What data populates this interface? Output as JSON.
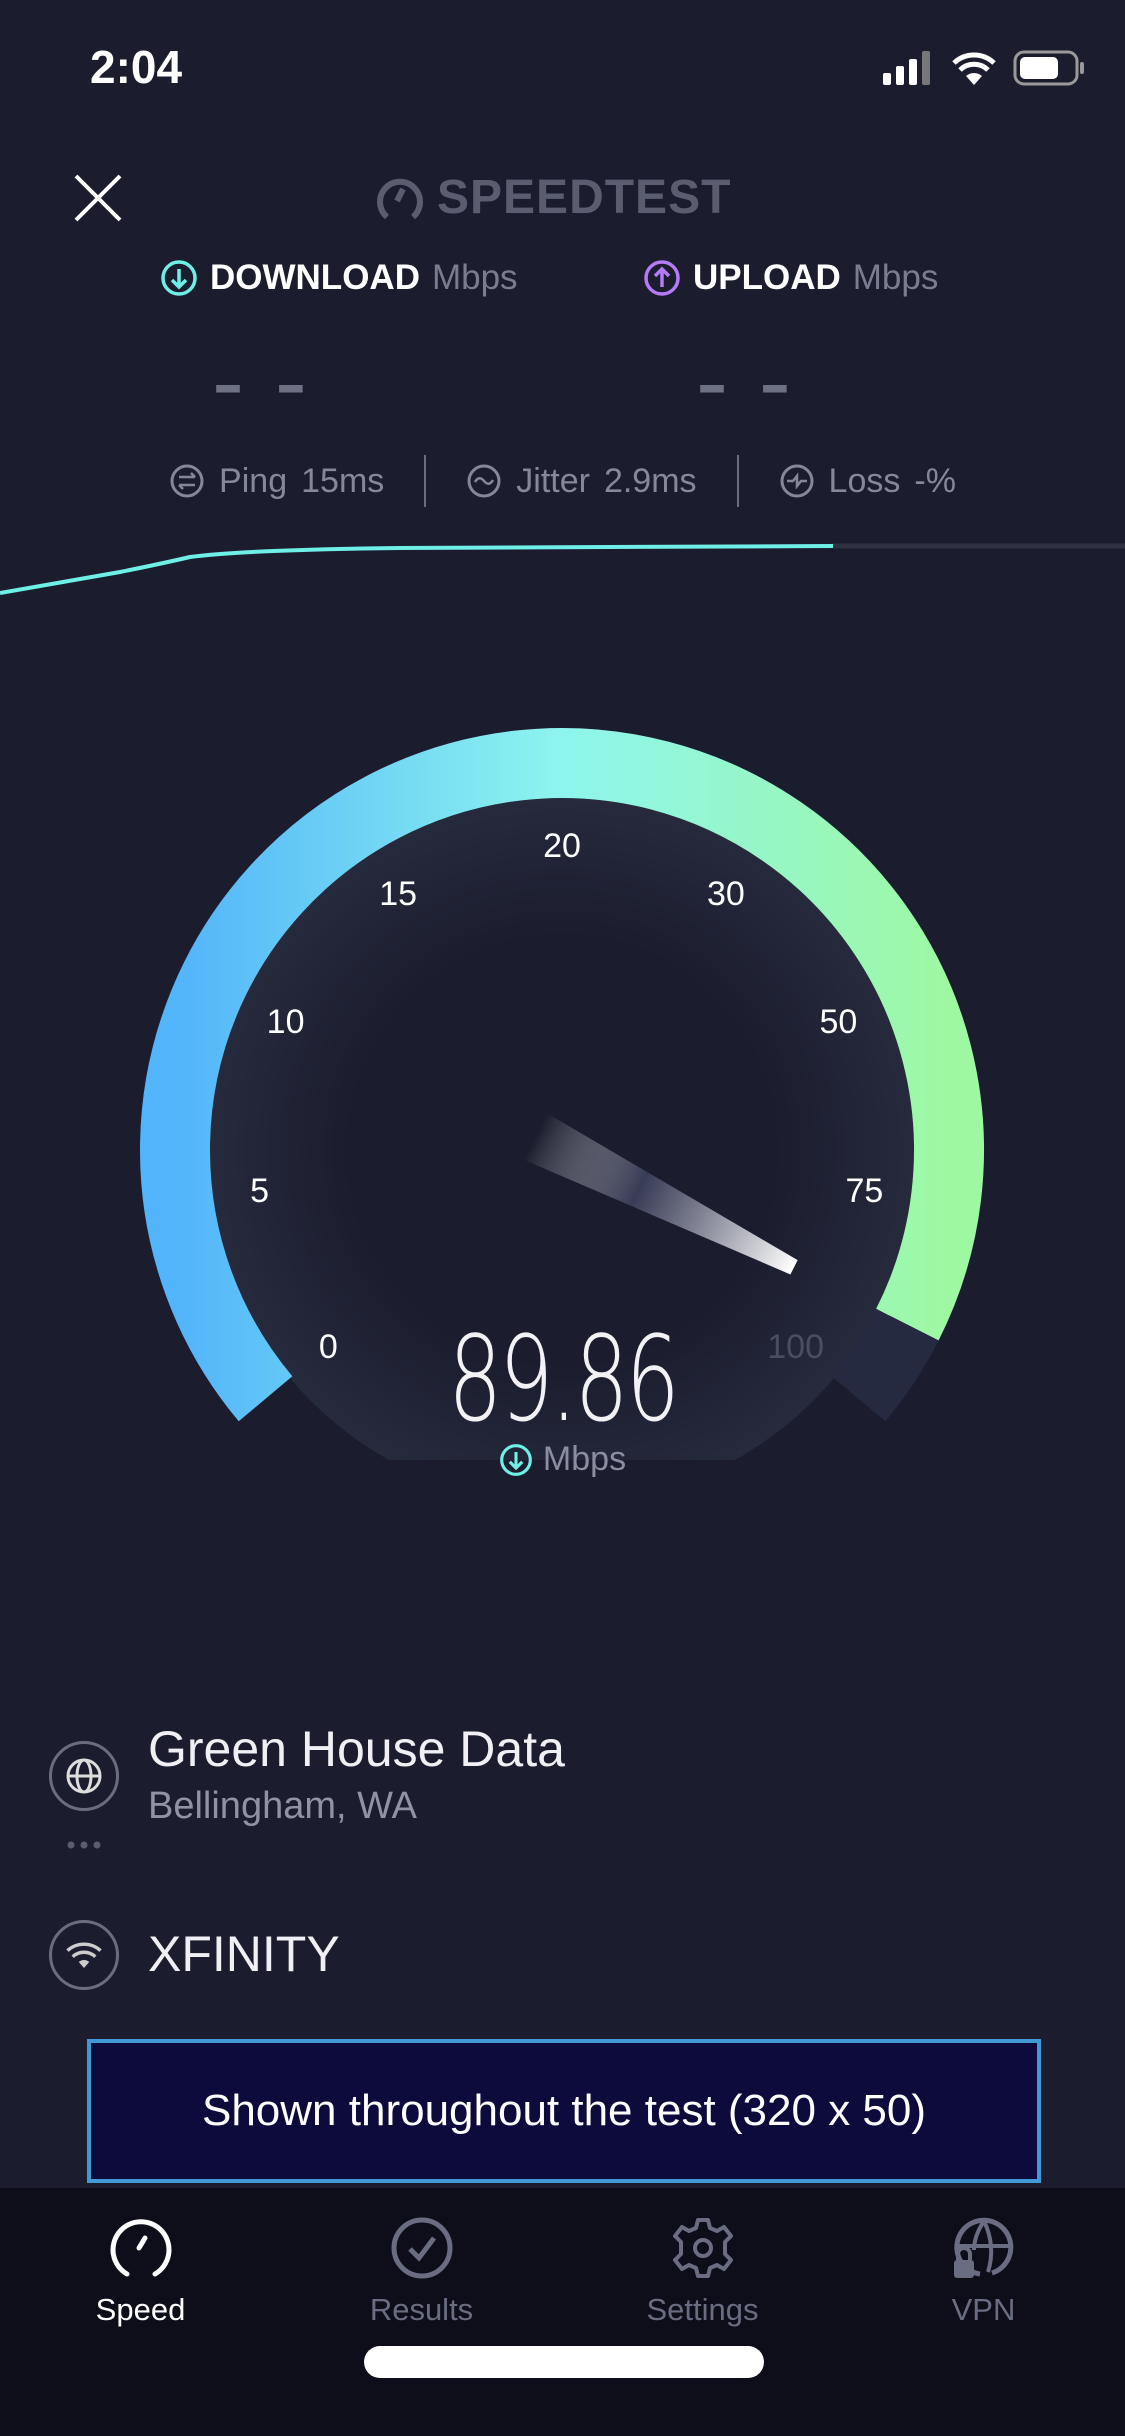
{
  "status_bar": {
    "time": "2:04",
    "icons": [
      "signal-icon",
      "wifi-icon",
      "battery-icon"
    ]
  },
  "header": {
    "logo_text": "SPEEDTEST"
  },
  "download": {
    "label": "DOWNLOAD",
    "unit": "Mbps",
    "value": "– –",
    "color": "#6ff0e6"
  },
  "upload": {
    "label": "UPLOAD",
    "unit": "Mbps",
    "value": "– –",
    "color": "#b57af5"
  },
  "metrics": {
    "ping": {
      "label": "Ping",
      "value": "15",
      "unit": "ms"
    },
    "jitter": {
      "label": "Jitter",
      "value": "2.9",
      "unit": "ms"
    },
    "loss": {
      "label": "Loss",
      "value": "-",
      "unit": "%"
    }
  },
  "gauge": {
    "value": 89.86,
    "value_text": "89.86",
    "unit": "Mbps",
    "ticks": [
      "0",
      "5",
      "10",
      "15",
      "20",
      "30",
      "50",
      "75",
      "100"
    ],
    "colors": {
      "start": "#52b4fa",
      "mid": "#8ef5ee",
      "end": "#9ef8a2"
    }
  },
  "server": {
    "name": "Green House Data",
    "location": "Bellingham, WA"
  },
  "isp": {
    "name": "XFINITY"
  },
  "ad": {
    "text": "Shown throughout the test (320 x 50)"
  },
  "tabs": [
    {
      "label": "Speed",
      "icon": "speedometer-icon",
      "active": true
    },
    {
      "label": "Results",
      "icon": "check-circle-icon",
      "active": false
    },
    {
      "label": "Settings",
      "icon": "gear-icon",
      "active": false
    },
    {
      "label": "VPN",
      "icon": "globe-lock-icon",
      "active": false
    }
  ]
}
